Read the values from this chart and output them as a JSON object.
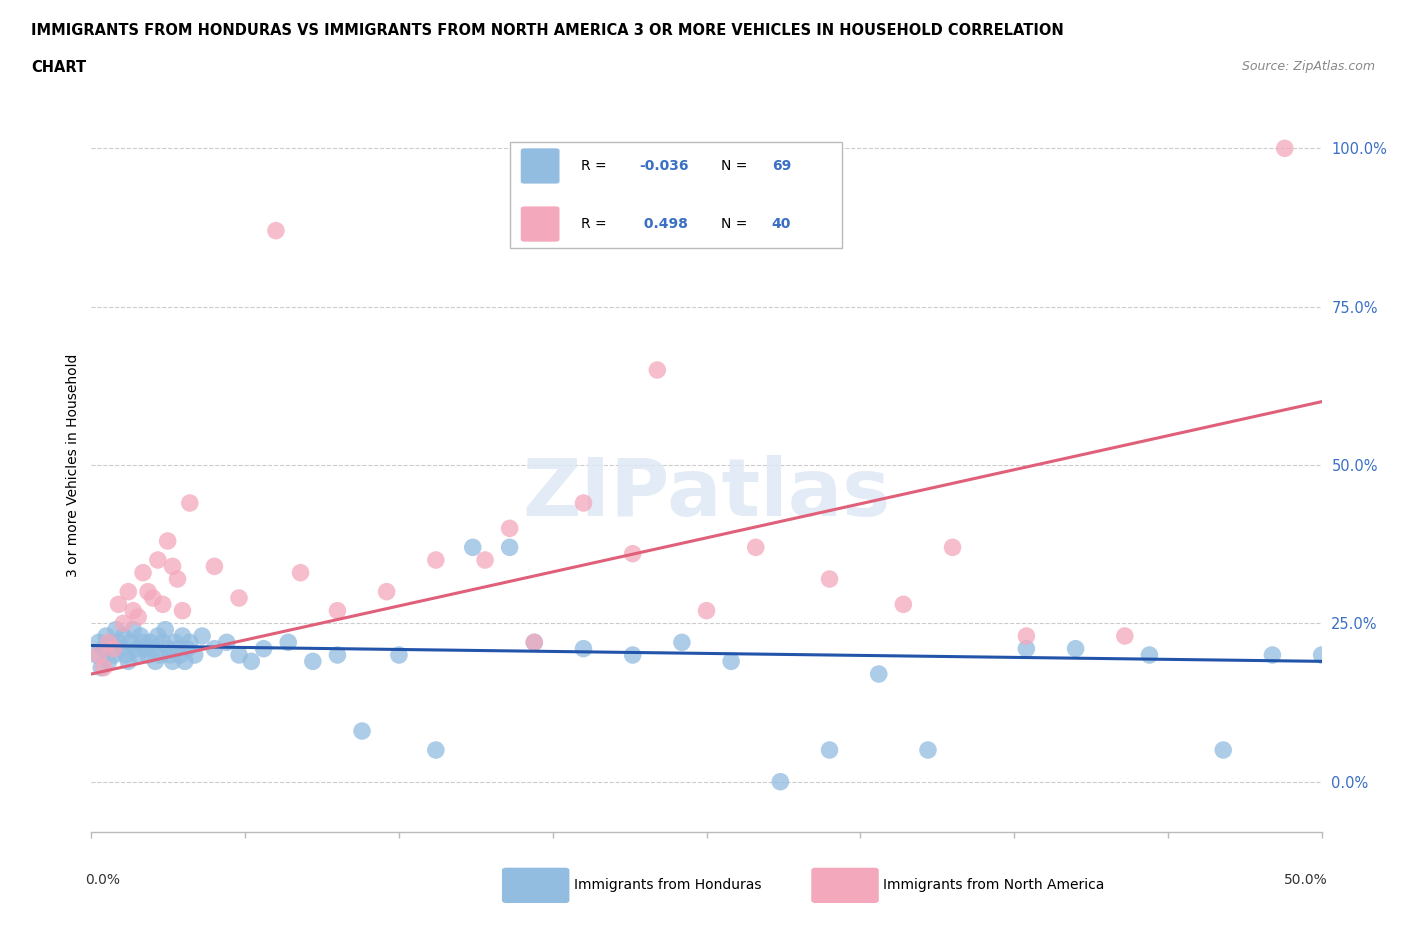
{
  "title_line1": "IMMIGRANTS FROM HONDURAS VS IMMIGRANTS FROM NORTH AMERICA 3 OR MORE VEHICLES IN HOUSEHOLD CORRELATION",
  "title_line2": "CHART",
  "source": "Source: ZipAtlas.com",
  "ylabel": "3 or more Vehicles in Household",
  "ytick_labels": [
    "0.0%",
    "25.0%",
    "50.0%",
    "75.0%",
    "100.0%"
  ],
  "ytick_values": [
    0,
    25,
    50,
    75,
    100
  ],
  "xlim": [
    0,
    50
  ],
  "ylim": [
    -8,
    108
  ],
  "r_blue": -0.036,
  "n_blue": 69,
  "r_pink": 0.498,
  "n_pink": 40,
  "blue_color": "#92bce0",
  "pink_color": "#f4a8bc",
  "blue_line_color": "#2255aa",
  "pink_line_color": "#e0607a",
  "legend_label_blue": "Immigrants from Honduras",
  "legend_label_pink": "Immigrants from North America",
  "watermark": "ZIPatlas",
  "blue_x": [
    0.2,
    0.3,
    0.4,
    0.5,
    0.6,
    0.7,
    0.8,
    0.9,
    1.0,
    1.1,
    1.2,
    1.3,
    1.4,
    1.5,
    1.6,
    1.7,
    1.8,
    1.9,
    2.0,
    2.1,
    2.2,
    2.3,
    2.4,
    2.5,
    2.6,
    2.7,
    2.8,
    2.9,
    3.0,
    3.1,
    3.2,
    3.3,
    3.4,
    3.5,
    3.6,
    3.7,
    3.8,
    3.9,
    4.0,
    4.2,
    4.5,
    5.0,
    5.5,
    6.0,
    6.5,
    7.0,
    8.0,
    9.0,
    10.0,
    11.0,
    12.5,
    14.0,
    15.5,
    17.0,
    18.0,
    20.0,
    22.0,
    24.0,
    26.0,
    28.0,
    30.0,
    32.0,
    34.0,
    38.0,
    40.0,
    43.0,
    46.0,
    48.0,
    50.0
  ],
  "blue_y": [
    20,
    22,
    18,
    21,
    23,
    19,
    22,
    20,
    24,
    22,
    21,
    23,
    20,
    19,
    22,
    24,
    21,
    20,
    23,
    22,
    21,
    20,
    22,
    21,
    19,
    23,
    20,
    22,
    24,
    21,
    20,
    19,
    22,
    21,
    20,
    23,
    19,
    21,
    22,
    20,
    23,
    21,
    22,
    20,
    19,
    21,
    22,
    19,
    20,
    8,
    20,
    5,
    37,
    37,
    22,
    21,
    20,
    22,
    19,
    0,
    5,
    17,
    5,
    21,
    21,
    20,
    5,
    20,
    20
  ],
  "pink_x": [
    0.3,
    0.5,
    0.7,
    0.9,
    1.1,
    1.3,
    1.5,
    1.7,
    1.9,
    2.1,
    2.3,
    2.5,
    2.7,
    2.9,
    3.1,
    3.3,
    3.5,
    3.7,
    4.0,
    5.0,
    6.0,
    7.5,
    8.5,
    10.0,
    12.0,
    14.0,
    16.0,
    17.0,
    18.0,
    20.0,
    22.0,
    23.0,
    25.0,
    27.0,
    30.0,
    33.0,
    35.0,
    38.0,
    42.0,
    48.5
  ],
  "pink_y": [
    20,
    18,
    22,
    21,
    28,
    25,
    30,
    27,
    26,
    33,
    30,
    29,
    35,
    28,
    38,
    34,
    32,
    27,
    44,
    34,
    29,
    87,
    33,
    27,
    30,
    35,
    35,
    40,
    22,
    44,
    36,
    65,
    27,
    37,
    32,
    28,
    37,
    23,
    23,
    100
  ],
  "blue_line_x": [
    0,
    50
  ],
  "blue_line_y": [
    21.5,
    19.0
  ],
  "pink_line_x": [
    0,
    50
  ],
  "pink_line_y": [
    17.0,
    60.0
  ]
}
